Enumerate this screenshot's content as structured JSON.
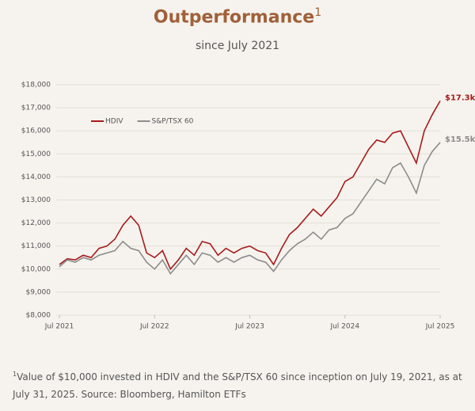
{
  "chart_data": {
    "type": "line",
    "title": "Outperformance",
    "title_note": "1",
    "subtitle": "since July 2021",
    "footnote_marker": "1",
    "footnote": "Value of $10,000 invested in HDIV and the S&P/TSX 60 since inception on July 19, 2021, as at July 31, 2025. Source: Bloomberg, Hamilton ETFs",
    "x": [
      "2021-07",
      "2021-08",
      "2021-09",
      "2021-10",
      "2021-11",
      "2021-12",
      "2022-01",
      "2022-02",
      "2022-03",
      "2022-04",
      "2022-05",
      "2022-06",
      "2022-07",
      "2022-08",
      "2022-09",
      "2022-10",
      "2022-11",
      "2022-12",
      "2023-01",
      "2023-02",
      "2023-03",
      "2023-04",
      "2023-05",
      "2023-06",
      "2023-07",
      "2023-08",
      "2023-09",
      "2023-10",
      "2023-11",
      "2023-12",
      "2024-01",
      "2024-02",
      "2024-03",
      "2024-04",
      "2024-05",
      "2024-06",
      "2024-07",
      "2024-08",
      "2024-09",
      "2024-10",
      "2024-11",
      "2024-12",
      "2025-01",
      "2025-02",
      "2025-03",
      "2025-04",
      "2025-05",
      "2025-06",
      "2025-07"
    ],
    "series": [
      {
        "name": "HDIV",
        "color": "#a51c1c",
        "last_label": "$17.3k",
        "values": [
          10200,
          10450,
          10400,
          10600,
          10500,
          10900,
          11000,
          11300,
          11900,
          12300,
          11900,
          10700,
          10500,
          10800,
          10000,
          10400,
          10900,
          10600,
          11200,
          11100,
          10600,
          10900,
          10700,
          10900,
          11000,
          10800,
          10700,
          10200,
          10900,
          11500,
          11800,
          12200,
          12600,
          12300,
          12700,
          13100,
          13800,
          14000,
          14600,
          15200,
          15600,
          15500,
          15900,
          16000,
          15300,
          14600,
          16000,
          16700,
          17300
        ]
      },
      {
        "name": "S&P/TSX 60",
        "color": "#8c8c8c",
        "last_label": "$15.5k",
        "values": [
          10100,
          10400,
          10300,
          10500,
          10400,
          10600,
          10700,
          10800,
          11200,
          10900,
          10800,
          10300,
          10000,
          10400,
          9800,
          10200,
          10600,
          10200,
          10700,
          10600,
          10300,
          10500,
          10300,
          10500,
          10600,
          10400,
          10300,
          9900,
          10400,
          10800,
          11100,
          11300,
          11600,
          11300,
          11700,
          11800,
          12200,
          12400,
          12900,
          13400,
          13900,
          13700,
          14400,
          14600,
          14000,
          13300,
          14500,
          15100,
          15500
        ]
      }
    ],
    "xlim": [
      "2021-07",
      "2025-07"
    ],
    "xticks": [
      {
        "value": "2021-07",
        "label": "Jul 2021"
      },
      {
        "value": "2022-07",
        "label": "Jul 2022"
      },
      {
        "value": "2023-07",
        "label": "Jul 2023"
      },
      {
        "value": "2024-07",
        "label": "Jul 2024"
      },
      {
        "value": "2025-07",
        "label": "Jul 2025"
      }
    ],
    "ylim": [
      8000,
      18000
    ],
    "yticks": [
      {
        "value": 8000,
        "label": "$8,000"
      },
      {
        "value": 9000,
        "label": "$9,000"
      },
      {
        "value": 10000,
        "label": "$10,000"
      },
      {
        "value": 11000,
        "label": "$11,000"
      },
      {
        "value": 12000,
        "label": "$12,000"
      },
      {
        "value": 13000,
        "label": "$13,000"
      },
      {
        "value": 14000,
        "label": "$14,000"
      },
      {
        "value": 15000,
        "label": "$15,000"
      },
      {
        "value": 16000,
        "label": "$16,000"
      },
      {
        "value": 17000,
        "label": "$17,000"
      },
      {
        "value": 18000,
        "label": "$18,000"
      }
    ],
    "grid": true,
    "legend": "upper left"
  }
}
